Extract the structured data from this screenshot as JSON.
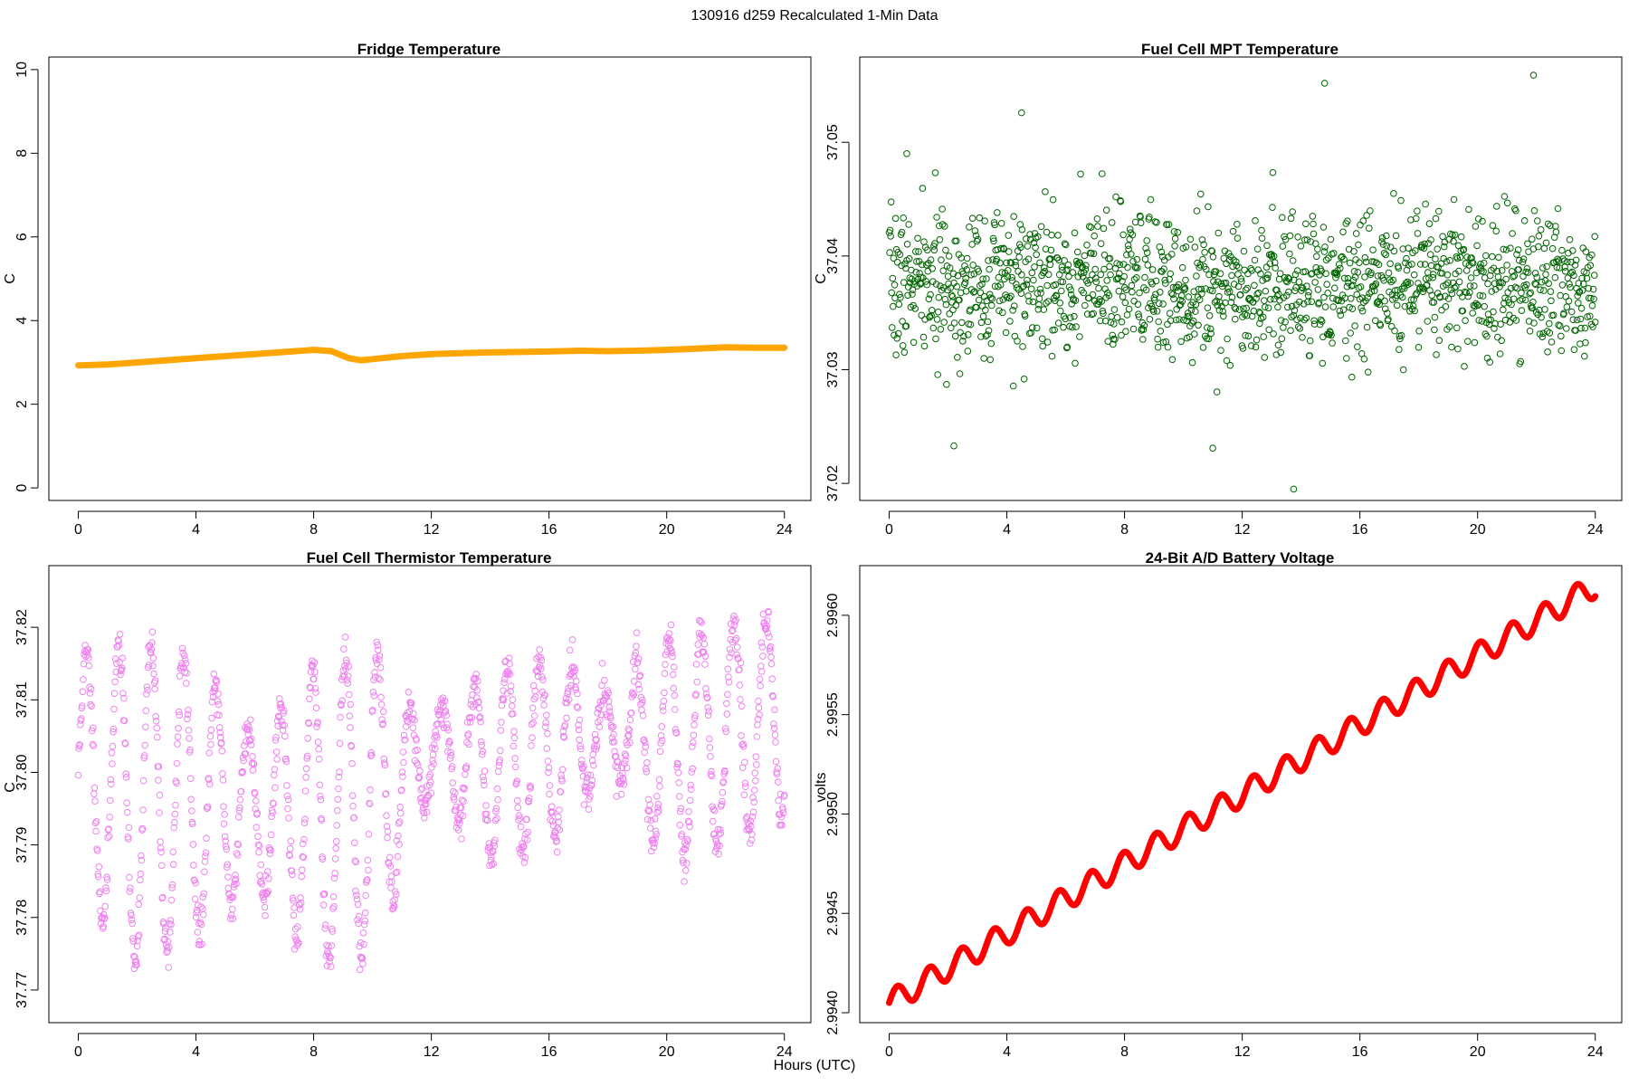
{
  "figure": {
    "suptitle": "130916   d259   Recalculated 1-Min Data",
    "common_xlabel": "Hours (UTC)"
  },
  "chart_data": [
    {
      "type": "line",
      "title": "Fridge Temperature",
      "xlabel": "",
      "ylabel": "C",
      "xlim": [
        -1,
        24.9
      ],
      "ylim": [
        -0.3,
        10.3
      ],
      "xticks": [
        0,
        4,
        8,
        12,
        16,
        20,
        24
      ],
      "yticks": [
        0,
        2,
        4,
        6,
        8,
        10
      ],
      "ytick_labels": [
        "0",
        "2",
        "4",
        "6",
        "8",
        "10"
      ],
      "color": "#ffa500",
      "marker": "thick-line",
      "series": [
        {
          "x": [
            0,
            1,
            2,
            3,
            4,
            5,
            6,
            7,
            8,
            8.6,
            9.2,
            9.6,
            10,
            11,
            12,
            13,
            14,
            15,
            16,
            17,
            18,
            19,
            20,
            21,
            22,
            23,
            24
          ],
          "values": [
            2.93,
            2.95,
            3.0,
            3.05,
            3.1,
            3.15,
            3.2,
            3.25,
            3.3,
            3.27,
            3.1,
            3.05,
            3.08,
            3.15,
            3.2,
            3.22,
            3.24,
            3.25,
            3.26,
            3.28,
            3.27,
            3.28,
            3.3,
            3.33,
            3.36,
            3.35,
            3.35
          ]
        }
      ]
    },
    {
      "type": "scatter",
      "title": "Fuel Cell MPT Temperature",
      "xlabel": "",
      "ylabel": "C",
      "xlim": [
        -1,
        24.9
      ],
      "ylim": [
        37.0185,
        37.0575
      ],
      "xticks": [
        0,
        4,
        8,
        12,
        16,
        20,
        24
      ],
      "yticks": [
        37.02,
        37.03,
        37.04,
        37.05
      ],
      "ytick_labels": [
        "37.02",
        "37.03",
        "37.04",
        "37.05"
      ],
      "color": "#006400",
      "marker": "open-circle",
      "generator": {
        "kind": "noise",
        "count": 1440,
        "center": 37.0375,
        "spread": 0.0045,
        "seed": 7
      },
      "outliers": {
        "x": [
          13.75,
          14.8,
          21.9,
          4.5,
          11,
          2.2,
          0.6
        ],
        "values": [
          37.0195,
          37.0552,
          37.0559,
          37.0526,
          37.0231,
          37.0233,
          37.049
        ]
      }
    },
    {
      "type": "scatter",
      "title": "Fuel Cell Thermistor Temperature",
      "xlabel": "",
      "ylabel": "C",
      "xlim": [
        -1,
        24.9
      ],
      "ylim": [
        37.7655,
        37.8285
      ],
      "xticks": [
        0,
        4,
        8,
        12,
        16,
        20,
        24
      ],
      "yticks": [
        37.77,
        37.78,
        37.79,
        37.8,
        37.81,
        37.82
      ],
      "ytick_labels": [
        "37.77",
        "37.78",
        "37.79",
        "37.80",
        "37.81",
        "37.82"
      ],
      "color": "#ee82ee",
      "marker": "open-circle",
      "generator": {
        "kind": "oscillation",
        "count": 1440,
        "period_hours": 1.1,
        "base_x": [
          0,
          2,
          4,
          6,
          8,
          10,
          11.5,
          12,
          14,
          16,
          18,
          20,
          22,
          24
        ],
        "base_y": [
          37.8,
          37.796,
          37.796,
          37.795,
          37.794,
          37.796,
          37.8,
          37.803,
          37.801,
          37.803,
          37.806,
          37.803,
          37.805,
          37.808
        ],
        "amp_x": [
          0,
          2,
          4,
          6,
          8,
          10,
          11.5,
          12,
          14,
          16,
          18,
          20,
          22,
          24
        ],
        "amp_y": [
          0.016,
          0.022,
          0.019,
          0.01,
          0.02,
          0.021,
          0.008,
          0.005,
          0.013,
          0.013,
          0.005,
          0.016,
          0.015,
          0.014
        ],
        "seed": 11
      }
    },
    {
      "type": "line",
      "title": "24-Bit A/D Battery Voltage",
      "xlabel": "",
      "ylabel": "volts",
      "xlim": [
        -1,
        24.9
      ],
      "ylim": [
        2.99395,
        2.99625
      ],
      "xticks": [
        0,
        4,
        8,
        12,
        16,
        20,
        24
      ],
      "yticks": [
        2.994,
        2.9945,
        2.995,
        2.9955,
        2.996
      ],
      "ytick_labels": [
        "2.9940",
        "2.9945",
        "2.9950",
        "2.9955",
        "2.9960"
      ],
      "color": "#ff0000",
      "marker": "thick-line",
      "series": [
        {
          "x": [
            0,
            24
          ],
          "values": [
            2.99405,
            2.99615
          ],
          "ripple_amplitude": 6e-05,
          "ripple_period_hours": 1.1
        }
      ]
    }
  ]
}
